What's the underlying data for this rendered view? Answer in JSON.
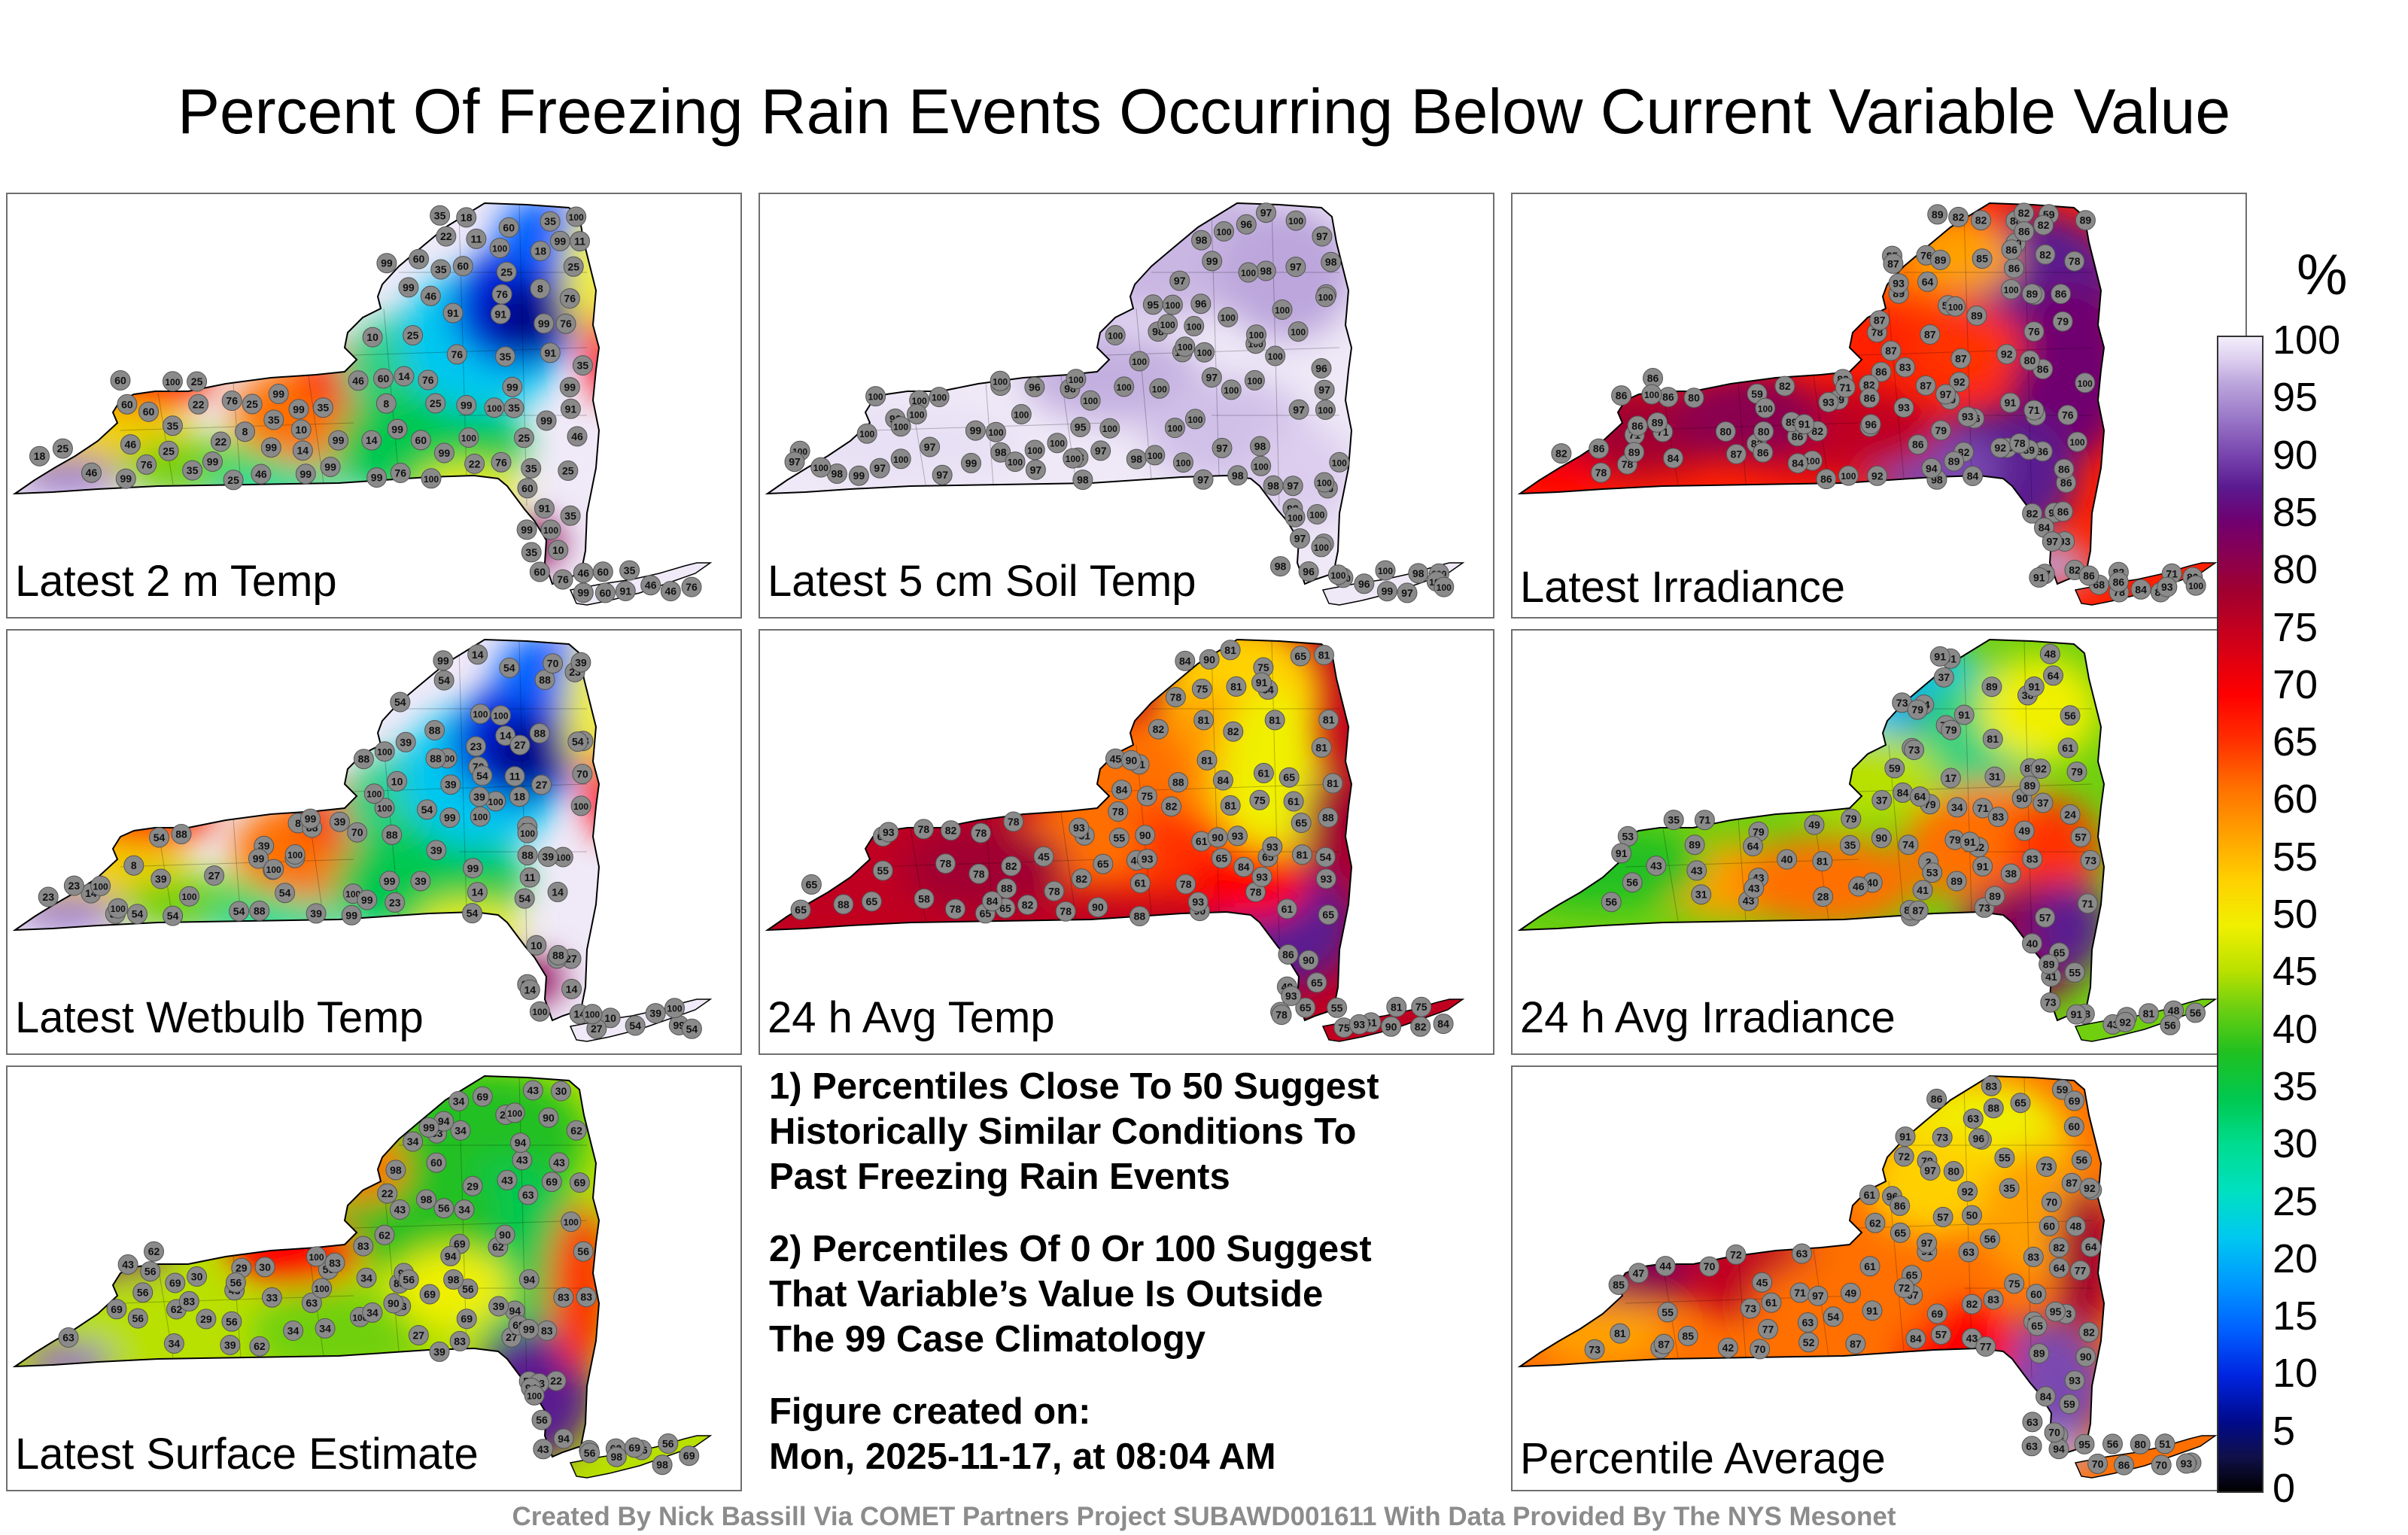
{
  "title": "Percent Of Freezing Rain Events Occurring Below Current Variable Value",
  "panels": [
    {
      "label": "Latest 2 m Temp",
      "palette": "temp2m",
      "values": [
        "35",
        "18",
        "46",
        "18",
        "46",
        "76",
        "60",
        "8",
        "8",
        "60",
        "46",
        "25",
        "10",
        "8",
        "76",
        "76",
        "25",
        "11",
        "14",
        "10",
        "11",
        "35",
        "22",
        "91",
        "25",
        "60",
        "14",
        "35",
        "14",
        "25",
        "10",
        "99",
        "91",
        "91",
        "99",
        "99",
        "99",
        "91",
        "99",
        "46",
        "60",
        "25",
        "35",
        "46",
        "60",
        "25",
        "76",
        "99",
        "91",
        "99",
        "99",
        "91",
        "76",
        "35",
        "46",
        "25",
        "35",
        "22",
        "35",
        "76",
        "99",
        "99",
        "25",
        "60",
        "35",
        "76",
        "22",
        "46",
        "25",
        "35",
        "22",
        "99",
        "46",
        "35",
        "18",
        "25",
        "60",
        "76",
        "60",
        "25",
        "60",
        "99",
        "76",
        "99",
        "46",
        "35",
        "99",
        "60",
        "35",
        "76",
        "35",
        "99",
        "99",
        "76",
        "35",
        "99",
        "99",
        "99",
        "99",
        "100",
        "100",
        "99",
        "100",
        "100",
        "100",
        "100",
        "100",
        "60",
        "60"
      ]
    },
    {
      "label": "Latest 5 cm Soil Temp",
      "palette": "soil",
      "values": [
        "96",
        "97",
        "98",
        "96",
        "97",
        "96",
        "97",
        "100",
        "100",
        "97",
        "100",
        "100",
        "97",
        "100",
        "97",
        "100",
        "99",
        "95",
        "98",
        "96",
        "100",
        "98",
        "98",
        "95",
        "100",
        "96",
        "100",
        "97",
        "98",
        "96",
        "97",
        "100",
        "96",
        "99",
        "100",
        "97",
        "96",
        "100",
        "98",
        "100",
        "100",
        "97",
        "100",
        "100",
        "98",
        "100",
        "98",
        "100",
        "97",
        "100",
        "97",
        "100",
        "98",
        "100",
        "99",
        "99",
        "97",
        "100",
        "98",
        "97",
        "100",
        "98",
        "100",
        "98",
        "98",
        "100",
        "97",
        "100",
        "100",
        "98",
        "100",
        "100",
        "98",
        "100",
        "100",
        "100",
        "97",
        "96",
        "100",
        "98",
        "100",
        "100",
        "100",
        "98",
        "97",
        "100",
        "100",
        "100",
        "100",
        "100",
        "100",
        "100",
        "99",
        "100",
        "97",
        "100",
        "100",
        "100",
        "100",
        "100",
        "100",
        "100",
        "100",
        "100",
        "100",
        "100",
        "100",
        "100",
        "100",
        "100"
      ]
    },
    {
      "label": "Latest Irradiance",
      "palette": "irrad",
      "values": [
        "78",
        "91",
        "89",
        "65",
        "82",
        "80",
        "86",
        "82",
        "86",
        "79",
        "68",
        "78",
        "82",
        "78",
        "100",
        "83",
        "76",
        "68",
        "86",
        "59",
        "92",
        "84",
        "54",
        "86",
        "87",
        "93",
        "71",
        "78",
        "64",
        "82",
        "84",
        "82",
        "71",
        "82",
        "76",
        "86",
        "86",
        "86",
        "87",
        "93",
        "86",
        "59",
        "89",
        "80",
        "92",
        "89",
        "87",
        "89",
        "82",
        "86",
        "100",
        "93",
        "79",
        "80",
        "82",
        "79",
        "86",
        "85",
        "82",
        "80",
        "86",
        "84",
        "85",
        "86",
        "82",
        "78",
        "86",
        "98",
        "100",
        "82",
        "87",
        "89",
        "87",
        "89",
        "76",
        "88",
        "86",
        "84",
        "71",
        "82",
        "87",
        "86",
        "86",
        "93",
        "86",
        "94",
        "71",
        "86",
        "82",
        "86",
        "86",
        "89",
        "80",
        "89",
        "84",
        "87",
        "92",
        "89",
        "93",
        "82",
        "86",
        "86",
        "80",
        "97",
        "89",
        "89",
        "87",
        "92",
        "86",
        "86",
        "89",
        "91",
        "97",
        "93",
        "86",
        "89",
        "91",
        "100",
        "100",
        "100",
        "100",
        "100",
        "93",
        "96",
        "100",
        "71",
        "78",
        "82"
      ]
    },
    {
      "label": "Latest Wetbulb Temp",
      "palette": "temp2m",
      "values": [
        "39",
        "54",
        "14",
        "18",
        "88",
        "54",
        "27",
        "8",
        "8",
        "88",
        "10",
        "14",
        "10",
        "11",
        "88",
        "54",
        "39",
        "11",
        "39",
        "10",
        "100",
        "14",
        "23",
        "88",
        "39",
        "27",
        "14",
        "39",
        "14",
        "23",
        "54",
        "100",
        "99",
        "100",
        "100",
        "100",
        "99",
        "100",
        "99",
        "54",
        "70",
        "70",
        "54",
        "54",
        "39",
        "54",
        "39",
        "88",
        "99",
        "100",
        "99",
        "100",
        "88",
        "54",
        "39",
        "23",
        "14",
        "54",
        "99",
        "88",
        "23",
        "39",
        "54",
        "88",
        "14",
        "27",
        "70",
        "88",
        "54",
        "100",
        "39",
        "23",
        "27",
        "54",
        "39",
        "39",
        "54",
        "14",
        "39",
        "27",
        "23",
        "54",
        "99",
        "70",
        "88",
        "88",
        "99",
        "100",
        "88",
        "54",
        "39",
        "99",
        "100",
        "99",
        "100",
        "100",
        "100",
        "100",
        "100",
        "100",
        "100",
        "100",
        "100",
        "88"
      ]
    },
    {
      "label": "24 h Avg Temp",
      "palette": "avgtemp",
      "values": [
        "65",
        "58",
        "78",
        "61",
        "75",
        "78",
        "45",
        "40",
        "81",
        "45",
        "75",
        "82",
        "49",
        "65",
        "82",
        "88",
        "55",
        "54",
        "65",
        "82",
        "81",
        "84",
        "88",
        "88",
        "90",
        "86",
        "81",
        "65",
        "65",
        "78",
        "78",
        "84",
        "90",
        "84",
        "82",
        "81",
        "78",
        "81",
        "65",
        "82",
        "65",
        "81",
        "61",
        "82",
        "78",
        "65",
        "61",
        "81",
        "65",
        "65",
        "84",
        "65",
        "78",
        "81",
        "61",
        "55",
        "65",
        "75",
        "78",
        "81",
        "61",
        "65",
        "75",
        "65",
        "90",
        "55",
        "88",
        "90",
        "82",
        "61",
        "65",
        "81",
        "78",
        "84",
        "75",
        "61",
        "75",
        "81",
        "93",
        "78",
        "78",
        "82",
        "81",
        "81",
        "90",
        "88",
        "78",
        "81",
        "84",
        "90",
        "93",
        "90",
        "91",
        "93",
        "93",
        "93",
        "93",
        "93",
        "93",
        "93",
        "90",
        "84",
        "93",
        "78"
      ]
    },
    {
      "label": "24 h Avg Irradiance",
      "palette": "irrad",
      "values": [
        "43",
        "38",
        "34",
        "48",
        "71",
        "24",
        "31",
        "28",
        "48",
        "17",
        "43",
        "35",
        "41",
        "43",
        "34",
        "37",
        "40",
        "2",
        "73",
        "43",
        "41",
        "48",
        "71",
        "56",
        "49",
        "40",
        "79",
        "35",
        "31",
        "74",
        "53",
        "43",
        "48",
        "73",
        "79",
        "89",
        "79",
        "40",
        "55",
        "49",
        "56",
        "73",
        "82",
        "56",
        "64",
        "38",
        "37",
        "81",
        "61",
        "79",
        "59",
        "73",
        "79",
        "57",
        "81",
        "56",
        "89",
        "43",
        "37",
        "79",
        "71",
        "57",
        "84",
        "87",
        "65",
        "73",
        "83",
        "79",
        "73",
        "89",
        "89",
        "64",
        "89",
        "91",
        "43",
        "53",
        "56",
        "89",
        "64",
        "83",
        "87",
        "91",
        "90",
        "89",
        "90",
        "81",
        "91",
        "92",
        "91",
        "91",
        "91",
        "91",
        "92",
        "91",
        "46",
        "79"
      ]
    },
    {
      "label": "Latest Surface Estimate",
      "palette": "surface",
      "values": [
        "43",
        "43",
        "63",
        "33",
        "33",
        "34",
        "22",
        "62",
        "62",
        "27",
        "56",
        "27",
        "22",
        "29",
        "69",
        "29",
        "43",
        "69",
        "34",
        "30",
        "34",
        "69",
        "98",
        "90",
        "83",
        "94",
        "94",
        "94",
        "83",
        "69",
        "43",
        "62",
        "56",
        "83",
        "60",
        "63",
        "56",
        "34",
        "56",
        "29",
        "56",
        "69",
        "43",
        "62",
        "34",
        "62",
        "56",
        "43",
        "34",
        "69",
        "29",
        "56",
        "83",
        "100",
        "98",
        "56",
        "30",
        "63",
        "83",
        "43",
        "39",
        "56",
        "83",
        "56",
        "43",
        "56",
        "56",
        "69",
        "30",
        "34",
        "69",
        "62",
        "56",
        "34",
        "39",
        "62",
        "69",
        "43",
        "56",
        "39",
        "34",
        "43",
        "83",
        "69",
        "83",
        "94",
        "94",
        "98",
        "94",
        "90",
        "94",
        "98",
        "98",
        "90",
        "90",
        "100",
        "100",
        "99",
        "56",
        "56",
        "69",
        "99",
        "100",
        "100",
        "100"
      ]
    },
    {
      "label": "Percentile Average",
      "palette": "average",
      "values": [
        "57",
        "43",
        "50",
        "63",
        "63",
        "47",
        "45",
        "48",
        "42",
        "73",
        "70",
        "60",
        "51",
        "49",
        "44",
        "60",
        "77",
        "65",
        "55",
        "35",
        "52",
        "86",
        "73",
        "64",
        "81",
        "84",
        "83",
        "87",
        "85",
        "91",
        "88",
        "82",
        "80",
        "90",
        "83",
        "91",
        "70",
        "55",
        "59",
        "60",
        "86",
        "78",
        "71",
        "80",
        "89",
        "63",
        "73",
        "80",
        "91",
        "85",
        "75",
        "93",
        "63",
        "70",
        "56",
        "56",
        "57",
        "82",
        "82",
        "72",
        "56",
        "65",
        "73",
        "86",
        "63",
        "70",
        "64",
        "57",
        "65",
        "61",
        "59",
        "61",
        "72",
        "54",
        "67",
        "61",
        "51",
        "63",
        "69",
        "84",
        "73",
        "77",
        "96",
        "83",
        "62",
        "70",
        "79",
        "95",
        "92",
        "87",
        "94",
        "85",
        "95",
        "92",
        "97",
        "97",
        "97",
        "96",
        "93",
        "87",
        "72",
        "65",
        "69",
        "70",
        "77",
        "86"
      ]
    }
  ],
  "notes": [
    [
      "1) Percentiles Close To 50 Suggest",
      "Historically Similar Conditions To",
      "Past Freezing Rain Events"
    ],
    [
      "2) Percentiles Of 0 Or 100 Suggest",
      "That Variable’s Value Is Outside",
      "The 99 Case Climatology"
    ],
    [
      "Figure created on:",
      "Mon, 2025-11-17, at 08:04 AM"
    ]
  ],
  "colorbar": {
    "unit": "%",
    "ticks": [
      "0",
      "5",
      "10",
      "15",
      "20",
      "25",
      "30",
      "35",
      "40",
      "45",
      "50",
      "55",
      "60",
      "65",
      "70",
      "75",
      "80",
      "85",
      "90",
      "95",
      "100"
    ],
    "range": [
      0,
      100
    ]
  },
  "credit": "Created By Nick Bassill Via COMET Partners Project SUBAWD001611 With Data Provided By The NYS Mesonet"
}
